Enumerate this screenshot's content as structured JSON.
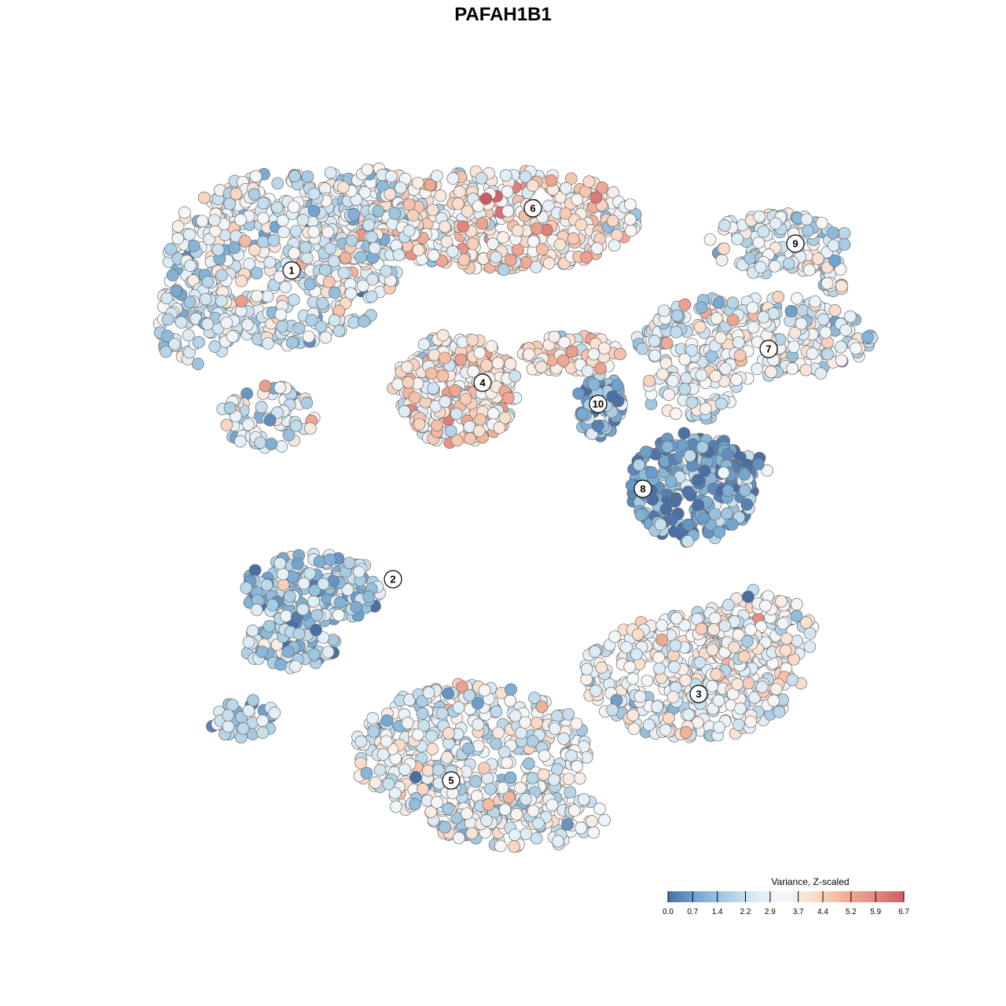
{
  "chart_data": {
    "type": "scatter",
    "title": "PAFAH1B1",
    "xlabel": "",
    "ylabel": "",
    "grid": false,
    "legend": {
      "title": "Variance, Z-scaled",
      "placement": "bottom-right",
      "range": [
        0.0,
        6.7
      ],
      "ticks": [
        "0.0",
        "0.7",
        "1.4",
        "2.2",
        "2.9",
        "3.7",
        "4.4",
        "5.2",
        "5.9",
        "6.7"
      ],
      "colors": [
        "#4a6fa5",
        "#74a8d2",
        "#a9cde3",
        "#dcebf5",
        "#f7f7f7",
        "#fadbc9",
        "#f2b097",
        "#e48a7f",
        "#cf5a67"
      ]
    },
    "clusters": [
      {
        "id": "1",
        "mean": 2.6
      },
      {
        "id": "2",
        "mean": 1.9
      },
      {
        "id": "3",
        "mean": 3.1
      },
      {
        "id": "4",
        "mean": 3.8
      },
      {
        "id": "5",
        "mean": 2.8
      },
      {
        "id": "6",
        "mean": 3.7
      },
      {
        "id": "7",
        "mean": 2.7
      },
      {
        "id": "8",
        "mean": 0.9
      },
      {
        "id": "9",
        "mean": 2.6
      },
      {
        "id": "10",
        "mean": 1.2
      }
    ]
  }
}
